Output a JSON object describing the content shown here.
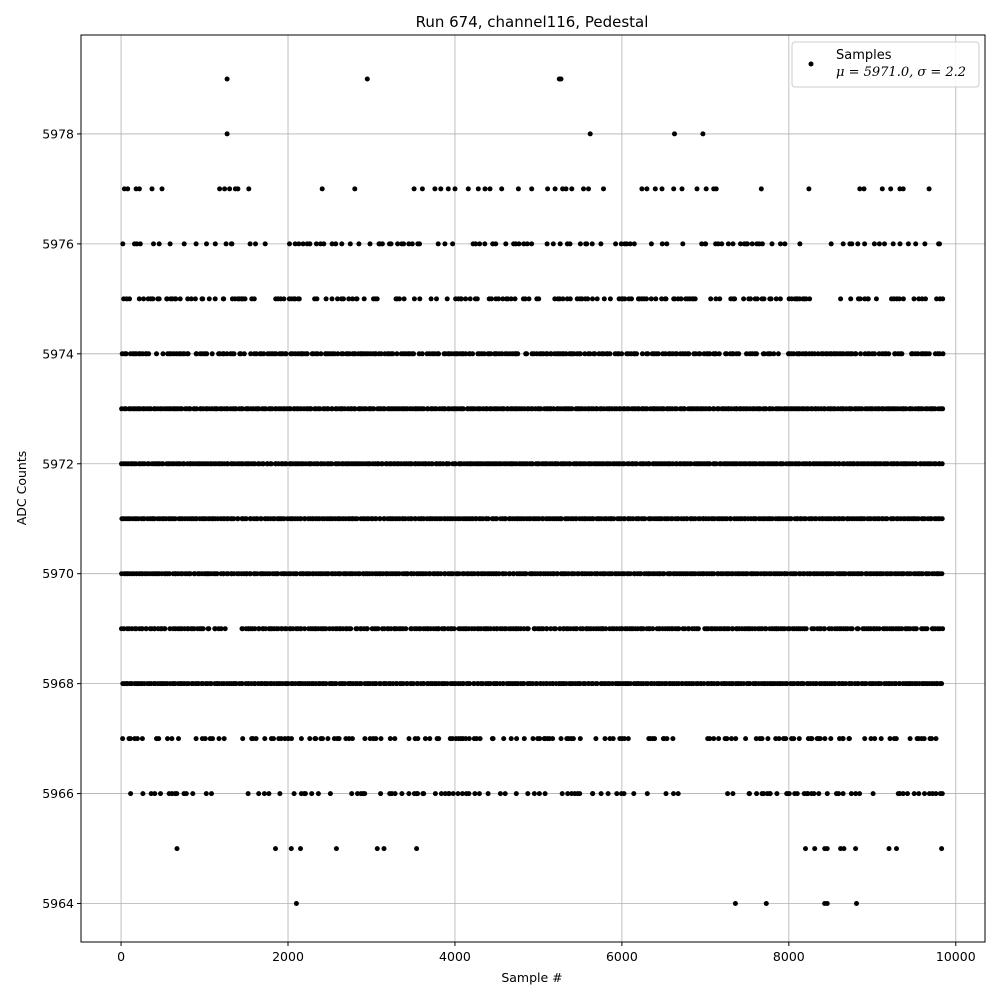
{
  "chart_data": {
    "type": "scatter",
    "title": "Run 674, channel116, Pedestal",
    "xlabel": "Sample #",
    "ylabel": "ADC Counts",
    "xlim": [
      -480,
      10350
    ],
    "ylim": [
      5963.3,
      5979.8
    ],
    "xticks": [
      0,
      2000,
      4000,
      6000,
      8000,
      10000
    ],
    "yticks": [
      5964,
      5966,
      5968,
      5970,
      5972,
      5974,
      5976,
      5978
    ],
    "grid": true,
    "legend_placement": "top-right",
    "color": "#000000",
    "series": [
      {
        "name": "Samples",
        "legend_stats": "μ = 5971.0, σ = 2.2",
        "sample_count": 9850,
        "rare_points": [
          {
            "x": 1270,
            "y": 5979
          },
          {
            "x": 2950,
            "y": 5979
          },
          {
            "x": 5250,
            "y": 5979
          },
          {
            "x": 5270,
            "y": 5979
          },
          {
            "x": 1270,
            "y": 5978
          },
          {
            "x": 5620,
            "y": 5978
          },
          {
            "x": 6630,
            "y": 5978
          },
          {
            "x": 6970,
            "y": 5978
          },
          {
            "x": 2100,
            "y": 5964
          },
          {
            "x": 7360,
            "y": 5964
          },
          {
            "x": 7730,
            "y": 5964
          },
          {
            "x": 8430,
            "y": 5964
          },
          {
            "x": 8460,
            "y": 5964
          },
          {
            "x": 8810,
            "y": 5964
          },
          {
            "x": 670,
            "y": 5965
          },
          {
            "x": 1850,
            "y": 5965
          },
          {
            "x": 2040,
            "y": 5965
          },
          {
            "x": 2150,
            "y": 5965
          },
          {
            "x": 2580,
            "y": 5965
          },
          {
            "x": 3070,
            "y": 5965
          },
          {
            "x": 3150,
            "y": 5965
          },
          {
            "x": 3540,
            "y": 5965
          },
          {
            "x": 8200,
            "y": 5965
          },
          {
            "x": 8310,
            "y": 5965
          },
          {
            "x": 8430,
            "y": 5965
          },
          {
            "x": 8460,
            "y": 5965
          },
          {
            "x": 8620,
            "y": 5965
          },
          {
            "x": 8660,
            "y": 5965
          },
          {
            "x": 8800,
            "y": 5965
          },
          {
            "x": 9200,
            "y": 5965
          },
          {
            "x": 9290,
            "y": 5965
          },
          {
            "x": 9830,
            "y": 5965
          },
          {
            "x": 40,
            "y": 5977
          },
          {
            "x": 80,
            "y": 5977
          },
          {
            "x": 180,
            "y": 5977
          },
          {
            "x": 220,
            "y": 5977
          },
          {
            "x": 370,
            "y": 5977
          },
          {
            "x": 490,
            "y": 5977
          },
          {
            "x": 1180,
            "y": 5977
          },
          {
            "x": 1240,
            "y": 5977
          },
          {
            "x": 1300,
            "y": 5977
          },
          {
            "x": 1370,
            "y": 5977
          },
          {
            "x": 1400,
            "y": 5977
          },
          {
            "x": 1530,
            "y": 5977
          },
          {
            "x": 2410,
            "y": 5977
          },
          {
            "x": 2800,
            "y": 5977
          },
          {
            "x": 3510,
            "y": 5977
          },
          {
            "x": 3610,
            "y": 5977
          },
          {
            "x": 3760,
            "y": 5977
          },
          {
            "x": 3830,
            "y": 5977
          },
          {
            "x": 3920,
            "y": 5977
          },
          {
            "x": 4000,
            "y": 5977
          },
          {
            "x": 4160,
            "y": 5977
          },
          {
            "x": 4280,
            "y": 5977
          },
          {
            "x": 4360,
            "y": 5977
          },
          {
            "x": 4420,
            "y": 5977
          },
          {
            "x": 4560,
            "y": 5977
          },
          {
            "x": 4760,
            "y": 5977
          },
          {
            "x": 4920,
            "y": 5977
          },
          {
            "x": 5110,
            "y": 5977
          },
          {
            "x": 5200,
            "y": 5977
          },
          {
            "x": 5290,
            "y": 5977
          },
          {
            "x": 5330,
            "y": 5977
          },
          {
            "x": 5400,
            "y": 5977
          },
          {
            "x": 5540,
            "y": 5977
          },
          {
            "x": 5600,
            "y": 5977
          },
          {
            "x": 5780,
            "y": 5977
          },
          {
            "x": 6240,
            "y": 5977
          },
          {
            "x": 6300,
            "y": 5977
          },
          {
            "x": 6400,
            "y": 5977
          },
          {
            "x": 6480,
            "y": 5977
          },
          {
            "x": 6620,
            "y": 5977
          },
          {
            "x": 6720,
            "y": 5977
          },
          {
            "x": 6900,
            "y": 5977
          },
          {
            "x": 7010,
            "y": 5977
          },
          {
            "x": 7100,
            "y": 5977
          },
          {
            "x": 7130,
            "y": 5977
          },
          {
            "x": 7670,
            "y": 5977
          },
          {
            "x": 8240,
            "y": 5977
          },
          {
            "x": 8850,
            "y": 5977
          },
          {
            "x": 8900,
            "y": 5977
          },
          {
            "x": 9120,
            "y": 5977
          },
          {
            "x": 9220,
            "y": 5977
          },
          {
            "x": 9330,
            "y": 5977
          },
          {
            "x": 9370,
            "y": 5977
          },
          {
            "x": 9680,
            "y": 5977
          }
        ],
        "bands": [
          {
            "y": 5976,
            "density": 0.3,
            "gaps": [
              [
                8140,
                8440
              ]
            ]
          },
          {
            "y": 5975,
            "density": 0.45,
            "gaps": [
              [
                8280,
                8500
              ]
            ]
          },
          {
            "y": 5974,
            "density": 0.8,
            "gaps": []
          },
          {
            "y": 5973,
            "density": 1.0,
            "gaps": []
          },
          {
            "y": 5972,
            "density": 1.0,
            "gaps": []
          },
          {
            "y": 5971,
            "density": 1.0,
            "gaps": []
          },
          {
            "y": 5970,
            "density": 1.0,
            "gaps": []
          },
          {
            "y": 5969,
            "density": 0.9,
            "gaps": [
              [
                1250,
                1420
              ]
            ]
          },
          {
            "y": 5968,
            "density": 1.0,
            "gaps": []
          },
          {
            "y": 5967,
            "density": 0.45,
            "gaps": [
              [
                6620,
                6980
              ]
            ]
          },
          {
            "y": 5966,
            "density": 0.35,
            "gaps": [
              [
                1120,
                1400
              ],
              [
                6680,
                7150
              ]
            ]
          }
        ]
      }
    ]
  }
}
